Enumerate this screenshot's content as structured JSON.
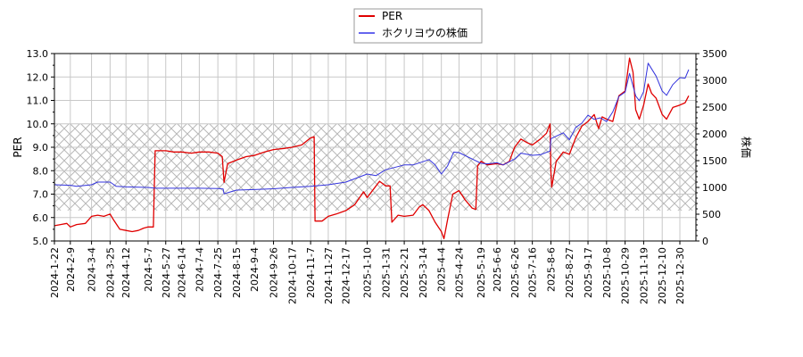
{
  "chart_data": {
    "type": "line",
    "title": "",
    "xlabel": "",
    "ylabel": "PER",
    "ylabel_right": "株価",
    "ylim": [
      5.0,
      13.0
    ],
    "ylim_right": [
      0,
      3500
    ],
    "grid": true,
    "legend_position": "top-center",
    "legend": [
      {
        "name": "PER",
        "color": "#e00000"
      },
      {
        "name": "ホクリヨウの株価",
        "color": "#3333dd"
      }
    ],
    "y_ticks": [
      "5.0",
      "6.0",
      "7.0",
      "8.0",
      "9.0",
      "10.0",
      "11.0",
      "12.0",
      "13.0"
    ],
    "y_ticks_right": [
      "0",
      "500",
      "1000",
      "1500",
      "2000",
      "2500",
      "3000",
      "3500"
    ],
    "x_ticks": [
      "2024-1-22",
      "2024-2-9",
      "2024-3-4",
      "2024-3-25",
      "2024-4-12",
      "2024-5-7",
      "2024-5-27",
      "2024-6-14",
      "2024-7-4",
      "2024-7-25",
      "2024-8-15",
      "2024-9-4",
      "2024-9-26",
      "2024-10-17",
      "2024-11-7",
      "2024-11-27",
      "2024-12-17",
      "2025-1-10",
      "2025-1-31",
      "2025-2-21",
      "2025-3-14",
      "2025-4-4",
      "2025-4-24",
      "2025-5-19",
      "2025-6-6",
      "2025-6-26",
      "2025-7-16",
      "2025-8-6",
      "2025-8-27",
      "2025-9-17",
      "2025-10-8",
      "2025-10-29",
      "2025-11-19",
      "2025-12-10",
      "2025-12-30"
    ],
    "shaded_band": {
      "from": 6.3,
      "to": 10.0,
      "pattern": "crosshatch"
    },
    "series": [
      {
        "name": "PER",
        "axis": "left",
        "color": "#e00000",
        "points": [
          [
            "2024-1-22",
            5.65
          ],
          [
            "2024-1-29",
            5.7
          ],
          [
            "2024-2-5",
            5.75
          ],
          [
            "2024-2-9",
            5.6
          ],
          [
            "2024-2-16",
            5.7
          ],
          [
            "2024-2-26",
            5.75
          ],
          [
            "2024-3-4",
            6.05
          ],
          [
            "2024-3-11",
            6.1
          ],
          [
            "2024-3-18",
            6.05
          ],
          [
            "2024-3-25",
            6.15
          ],
          [
            "2024-3-29",
            5.9
          ],
          [
            "2024-4-5",
            5.5
          ],
          [
            "2024-4-12",
            5.45
          ],
          [
            "2024-4-19",
            5.4
          ],
          [
            "2024-4-26",
            5.45
          ],
          [
            "2024-5-2",
            5.55
          ],
          [
            "2024-5-7",
            5.6
          ],
          [
            "2024-5-13",
            5.6
          ],
          [
            "2024-5-15",
            8.85
          ],
          [
            "2024-5-27",
            8.85
          ],
          [
            "2024-6-5",
            8.8
          ],
          [
            "2024-6-14",
            8.8
          ],
          [
            "2024-6-25",
            8.75
          ],
          [
            "2024-7-4",
            8.8
          ],
          [
            "2024-7-15",
            8.8
          ],
          [
            "2024-7-25",
            8.75
          ],
          [
            "2024-7-30",
            8.6
          ],
          [
            "2024-8-1",
            7.5
          ],
          [
            "2024-8-5",
            8.3
          ],
          [
            "2024-8-15",
            8.45
          ],
          [
            "2024-8-26",
            8.6
          ],
          [
            "2024-9-4",
            8.65
          ],
          [
            "2024-9-16",
            8.8
          ],
          [
            "2024-9-26",
            8.9
          ],
          [
            "2024-10-8",
            8.95
          ],
          [
            "2024-10-17",
            9.0
          ],
          [
            "2024-10-28",
            9.1
          ],
          [
            "2024-11-7",
            9.4
          ],
          [
            "2024-11-11",
            9.45
          ],
          [
            "2024-11-12",
            5.85
          ],
          [
            "2024-11-20",
            5.85
          ],
          [
            "2024-11-27",
            6.05
          ],
          [
            "2024-12-6",
            6.15
          ],
          [
            "2024-12-17",
            6.3
          ],
          [
            "2024-12-27",
            6.55
          ],
          [
            "2025-1-6",
            7.1
          ],
          [
            "2025-1-10",
            6.85
          ],
          [
            "2025-1-17",
            7.2
          ],
          [
            "2025-1-24",
            7.55
          ],
          [
            "2025-1-31",
            7.35
          ],
          [
            "2025-2-5",
            7.35
          ],
          [
            "2025-2-7",
            5.8
          ],
          [
            "2025-2-14",
            6.1
          ],
          [
            "2025-2-21",
            6.05
          ],
          [
            "2025-3-3",
            6.1
          ],
          [
            "2025-3-10",
            6.45
          ],
          [
            "2025-3-14",
            6.55
          ],
          [
            "2025-3-21",
            6.3
          ],
          [
            "2025-3-28",
            5.8
          ],
          [
            "2025-4-4",
            5.4
          ],
          [
            "2025-4-7",
            5.1
          ],
          [
            "2025-4-11",
            5.9
          ],
          [
            "2025-4-17",
            7.0
          ],
          [
            "2025-4-24",
            7.15
          ],
          [
            "2025-5-1",
            6.75
          ],
          [
            "2025-5-9",
            6.4
          ],
          [
            "2025-5-13",
            6.35
          ],
          [
            "2025-5-15",
            8.2
          ],
          [
            "2025-5-19",
            8.4
          ],
          [
            "2025-5-26",
            8.25
          ],
          [
            "2025-6-6",
            8.3
          ],
          [
            "2025-6-13",
            8.25
          ],
          [
            "2025-6-20",
            8.4
          ],
          [
            "2025-6-26",
            9.0
          ],
          [
            "2025-7-3",
            9.35
          ],
          [
            "2025-7-10",
            9.2
          ],
          [
            "2025-7-16",
            9.1
          ],
          [
            "2025-7-25",
            9.35
          ],
          [
            "2025-8-1",
            9.6
          ],
          [
            "2025-8-5",
            10.0
          ],
          [
            "2025-8-6",
            8.0
          ],
          [
            "2025-8-7",
            7.3
          ],
          [
            "2025-8-12",
            8.4
          ],
          [
            "2025-8-20",
            8.8
          ],
          [
            "2025-8-27",
            8.7
          ],
          [
            "2025-9-3",
            9.4
          ],
          [
            "2025-9-10",
            9.9
          ],
          [
            "2025-9-17",
            10.1
          ],
          [
            "2025-9-24",
            10.4
          ],
          [
            "2025-9-29",
            9.8
          ],
          [
            "2025-10-3",
            10.3
          ],
          [
            "2025-10-8",
            10.2
          ],
          [
            "2025-10-15",
            10.1
          ],
          [
            "2025-10-22",
            11.2
          ],
          [
            "2025-10-29",
            11.4
          ],
          [
            "2025-11-3",
            12.8
          ],
          [
            "2025-11-7",
            12.2
          ],
          [
            "2025-11-10",
            10.6
          ],
          [
            "2025-11-14",
            10.2
          ],
          [
            "2025-11-19",
            10.8
          ],
          [
            "2025-11-24",
            11.7
          ],
          [
            "2025-11-28",
            11.3
          ],
          [
            "2025-12-3",
            11.1
          ],
          [
            "2025-12-10",
            10.4
          ],
          [
            "2025-12-15",
            10.2
          ],
          [
            "2025-12-22",
            10.7
          ],
          [
            "2025-12-30",
            10.8
          ],
          [
            "2026-1-5",
            10.9
          ],
          [
            "2026-1-9",
            11.2
          ]
        ]
      },
      {
        "name": "ホクリヨウの株価",
        "axis": "right",
        "color": "#3333dd",
        "points": [
          [
            "2024-1-22",
            1050
          ],
          [
            "2024-2-9",
            1040
          ],
          [
            "2024-2-16",
            1020
          ],
          [
            "2024-3-4",
            1050
          ],
          [
            "2024-3-11",
            1100
          ],
          [
            "2024-3-25",
            1100
          ],
          [
            "2024-4-1",
            1020
          ],
          [
            "2024-4-12",
            1010
          ],
          [
            "2024-5-7",
            1000
          ],
          [
            "2024-5-15",
            985
          ],
          [
            "2024-6-14",
            985
          ],
          [
            "2024-7-4",
            985
          ],
          [
            "2024-7-25",
            980
          ],
          [
            "2024-7-31",
            970
          ],
          [
            "2024-8-1",
            880
          ],
          [
            "2024-8-15",
            950
          ],
          [
            "2024-9-4",
            960
          ],
          [
            "2024-9-26",
            975
          ],
          [
            "2024-10-17",
            1000
          ],
          [
            "2024-11-7",
            1020
          ],
          [
            "2024-11-27",
            1050
          ],
          [
            "2024-12-17",
            1100
          ],
          [
            "2025-1-10",
            1250
          ],
          [
            "2025-1-20",
            1220
          ],
          [
            "2025-1-31",
            1330
          ],
          [
            "2025-2-21",
            1420
          ],
          [
            "2025-3-3",
            1420
          ],
          [
            "2025-3-14",
            1480
          ],
          [
            "2025-3-21",
            1520
          ],
          [
            "2025-3-28",
            1420
          ],
          [
            "2025-4-4",
            1250
          ],
          [
            "2025-4-11",
            1400
          ],
          [
            "2025-4-18",
            1660
          ],
          [
            "2025-4-24",
            1650
          ],
          [
            "2025-5-9",
            1530
          ],
          [
            "2025-5-19",
            1450
          ],
          [
            "2025-5-26",
            1440
          ],
          [
            "2025-6-6",
            1460
          ],
          [
            "2025-6-13",
            1420
          ],
          [
            "2025-6-26",
            1530
          ],
          [
            "2025-7-3",
            1640
          ],
          [
            "2025-7-16",
            1600
          ],
          [
            "2025-7-25",
            1610
          ],
          [
            "2025-8-5",
            1680
          ],
          [
            "2025-8-6",
            1910
          ],
          [
            "2025-8-20",
            2020
          ],
          [
            "2025-8-27",
            1890
          ],
          [
            "2025-9-3",
            2120
          ],
          [
            "2025-9-10",
            2200
          ],
          [
            "2025-9-17",
            2350
          ],
          [
            "2025-9-24",
            2270
          ],
          [
            "2025-10-1",
            2300
          ],
          [
            "2025-10-8",
            2230
          ],
          [
            "2025-10-15",
            2410
          ],
          [
            "2025-10-22",
            2700
          ],
          [
            "2025-10-29",
            2780
          ],
          [
            "2025-11-3",
            3130
          ],
          [
            "2025-11-10",
            2710
          ],
          [
            "2025-11-14",
            2620
          ],
          [
            "2025-11-19",
            2790
          ],
          [
            "2025-11-24",
            3320
          ],
          [
            "2025-12-3",
            3080
          ],
          [
            "2025-12-10",
            2800
          ],
          [
            "2025-12-15",
            2720
          ],
          [
            "2025-12-22",
            2920
          ],
          [
            "2025-12-30",
            3050
          ],
          [
            "2026-1-5",
            3040
          ],
          [
            "2026-1-9",
            3200
          ]
        ]
      }
    ]
  }
}
